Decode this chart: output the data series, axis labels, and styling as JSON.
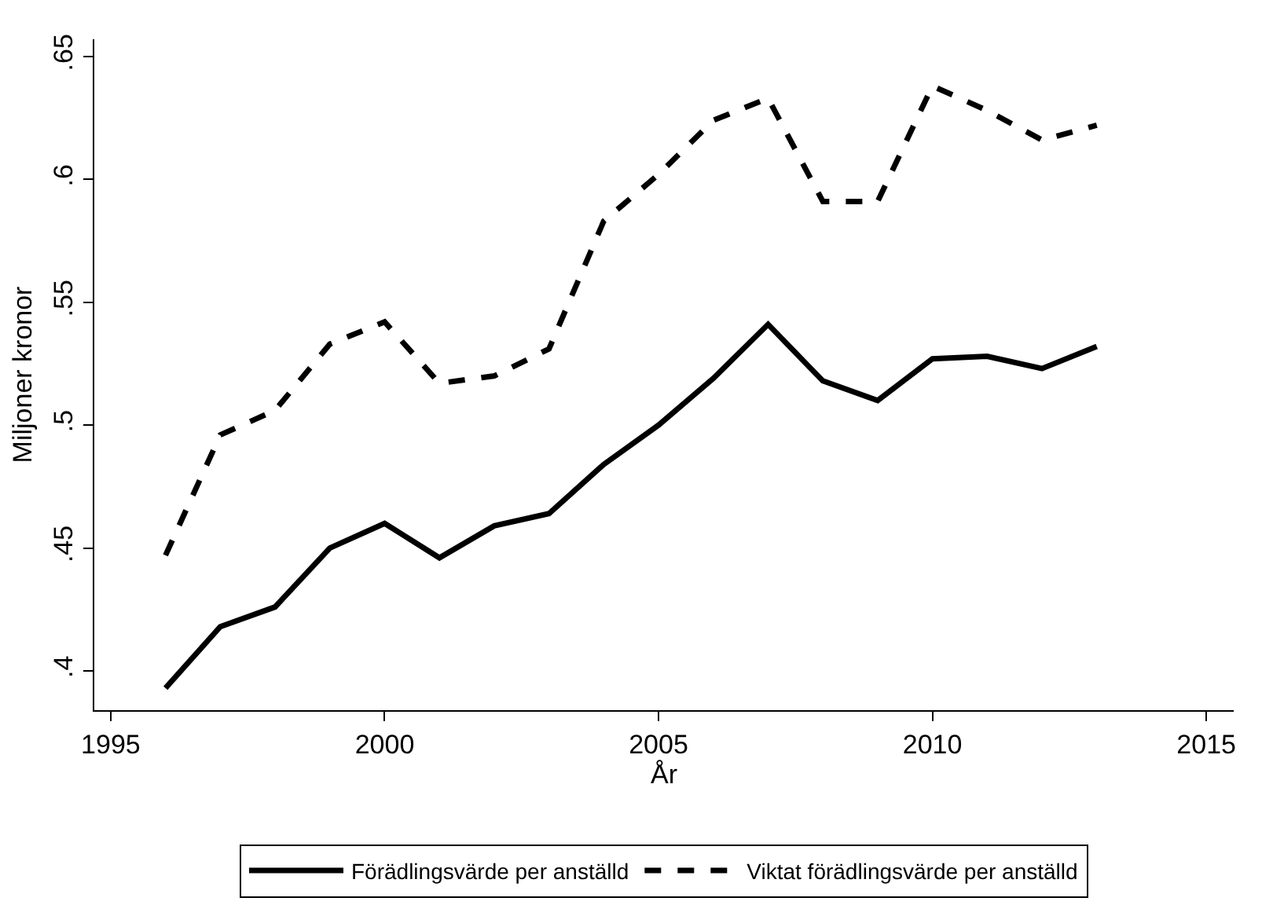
{
  "chart_data": {
    "type": "line",
    "xlabel": "År",
    "ylabel": "Miljoner kronor",
    "x": [
      1996,
      1997,
      1998,
      1999,
      2000,
      2001,
      2002,
      2003,
      2004,
      2005,
      2006,
      2007,
      2008,
      2009,
      2010,
      2011,
      2012,
      2013
    ],
    "series": [
      {
        "name": "Förädlingsvärde per anställd",
        "color": "#000000",
        "line_style": "solid",
        "values": [
          0.393,
          0.418,
          0.426,
          0.45,
          0.46,
          0.446,
          0.459,
          0.464,
          0.484,
          0.5,
          0.519,
          0.541,
          0.518,
          0.51,
          0.527,
          0.528,
          0.523,
          0.532
        ]
      },
      {
        "name": "Viktat förädlingsvärde per anställd",
        "color": "#000000",
        "line_style": "dashed",
        "values": [
          0.447,
          0.496,
          0.506,
          0.533,
          0.542,
          0.517,
          0.52,
          0.531,
          0.583,
          0.602,
          0.624,
          0.633,
          0.591,
          0.591,
          0.638,
          0.628,
          0.616,
          0.622
        ]
      }
    ],
    "xlim": [
      1994.7,
      2015.5
    ],
    "xticks": [
      1995,
      2000,
      2005,
      2010,
      2015
    ],
    "ylim": [
      0.384,
      0.657
    ],
    "yticks": [
      {
        "value": 0.4,
        "label": ".4"
      },
      {
        "value": 0.45,
        "label": ".45"
      },
      {
        "value": 0.5,
        "label": ".5"
      },
      {
        "value": 0.55,
        "label": ".55"
      },
      {
        "value": 0.6,
        "label": ".6"
      },
      {
        "value": 0.65,
        "label": ".65"
      }
    ],
    "legend": "bottom",
    "marker": "none"
  }
}
